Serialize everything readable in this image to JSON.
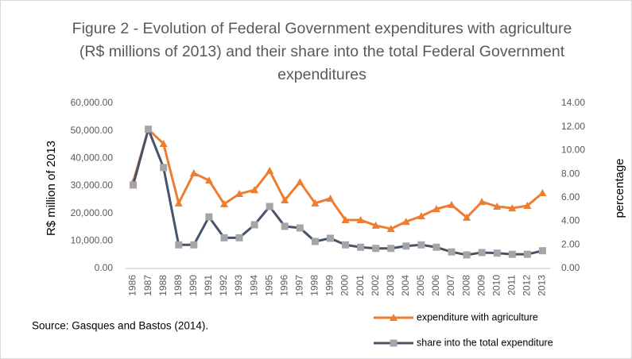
{
  "chart_data": {
    "type": "line",
    "title": "Figure 2 - Evolution of Federal Government expenditures with agriculture (R$ millions of 2013) and their share into the total Federal Government expenditures",
    "ylabel": "R$ million of 2013",
    "y2label": "percentage",
    "source": "Source: Gasques and Bastos (2014).",
    "categories": [
      "1986",
      "1987",
      "1988",
      "1989",
      "1990",
      "1991",
      "1992",
      "1993",
      "1994",
      "1995",
      "1996",
      "1997",
      "1998",
      "1999",
      "2000",
      "2001",
      "2002",
      "2003",
      "2004",
      "2005",
      "2006",
      "2007",
      "2008",
      "2009",
      "2010",
      "2011",
      "2012",
      "2013"
    ],
    "series": [
      {
        "name": "expenditure with agriculture",
        "color": "#ed7d31",
        "marker": "triangle",
        "values": [
          31500,
          50500,
          45300,
          23700,
          34600,
          32000,
          23400,
          27100,
          28500,
          35500,
          24800,
          31400,
          23700,
          25400,
          17600,
          17600,
          15600,
          14400,
          17000,
          19000,
          21600,
          23100,
          18500,
          24200,
          22500,
          21900,
          22800,
          27400
        ]
      },
      {
        "name": "share into the total expenditure",
        "color": "#44546a",
        "marker": "square",
        "axis": "y2",
        "values": [
          7.07,
          11.8,
          8.55,
          2.0,
          2.0,
          4.37,
          2.6,
          2.6,
          3.7,
          5.25,
          3.57,
          3.43,
          2.29,
          2.56,
          2.0,
          1.8,
          1.7,
          1.7,
          1.9,
          2.0,
          1.8,
          1.4,
          1.15,
          1.35,
          1.3,
          1.2,
          1.2,
          1.5
        ]
      }
    ],
    "ylim": [
      0,
      60000
    ],
    "yticks": [
      {
        "value": 0,
        "label": "0.00"
      },
      {
        "value": 10000,
        "label": "10,000.00"
      },
      {
        "value": 20000,
        "label": "20,000.00"
      },
      {
        "value": 30000,
        "label": "30,000.00"
      },
      {
        "value": 40000,
        "label": "40,000.00"
      },
      {
        "value": 50000,
        "label": "50,000.00"
      },
      {
        "value": 60000,
        "label": "60,000.00"
      }
    ],
    "y2lim": [
      0,
      14
    ],
    "y2ticks": [
      {
        "value": 0,
        "label": "0.00"
      },
      {
        "value": 2,
        "label": "2.00"
      },
      {
        "value": 4,
        "label": "4.00"
      },
      {
        "value": 6,
        "label": "6.00"
      },
      {
        "value": 8,
        "label": "8.00"
      },
      {
        "value": 10,
        "label": "10.00"
      },
      {
        "value": 12,
        "label": "12.00"
      },
      {
        "value": 14,
        "label": "14.00"
      }
    ],
    "grid": false
  }
}
